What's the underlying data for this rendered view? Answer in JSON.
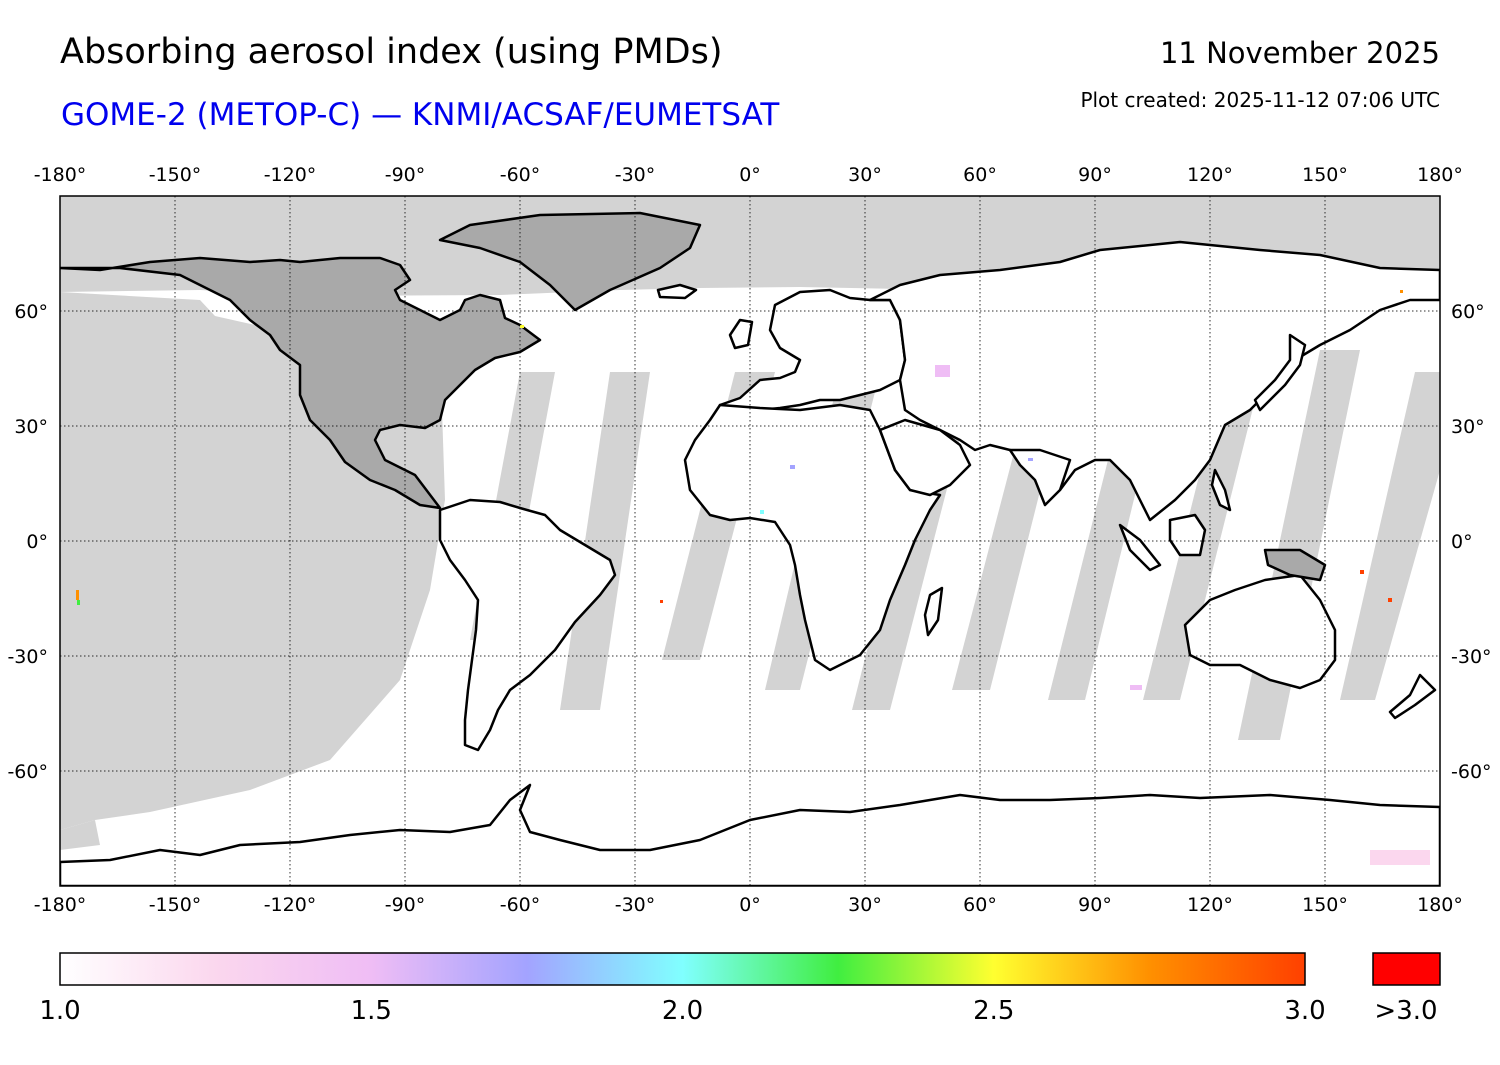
{
  "header": {
    "title": "Absorbing aerosol index (using PMDs)",
    "subtitle": "GOME-2 (METOP-C) — KNMI/ACSAF/EUMETSAT",
    "date": "11 November 2025",
    "created": "Plot created: 2025-11-12 07:06 UTC"
  },
  "map": {
    "projection": "equirectangular",
    "lon_range": [
      -180,
      180
    ],
    "lat_range": [
      -90,
      90
    ],
    "lon_ticks": [
      -180,
      -150,
      -120,
      -90,
      -60,
      -30,
      0,
      30,
      60,
      90,
      120,
      150,
      180
    ],
    "lon_tick_labels": [
      "-180°",
      "-150°",
      "-120°",
      "-90°",
      "-60°",
      "-30°",
      "0°",
      "30°",
      "60°",
      "90°",
      "120°",
      "150°",
      "180°"
    ],
    "lat_ticks": [
      60,
      30,
      0,
      -30,
      -60
    ],
    "lat_tick_labels": [
      "60°",
      "30°",
      "0°",
      "-30°",
      "-60°"
    ],
    "colors": {
      "no_data": "#d3d3d3",
      "no_data_land": "#a9a9a9",
      "coastline": "#000000",
      "ocean_land_background": "#ffffff"
    }
  },
  "colorbar": {
    "min": 1.0,
    "max": 3.0,
    "tick_labels": [
      "1.0",
      "1.5",
      "2.0",
      "2.5",
      "3.0"
    ],
    "over_label": ">3.0",
    "over_color": "#ff0000",
    "colors": [
      "#ffffff",
      "#fbd7ee",
      "#efbdf5",
      "#a3a3ff",
      "#80ffff",
      "#40ee40",
      "#ffff30",
      "#ff9000",
      "#ff4000"
    ]
  }
}
